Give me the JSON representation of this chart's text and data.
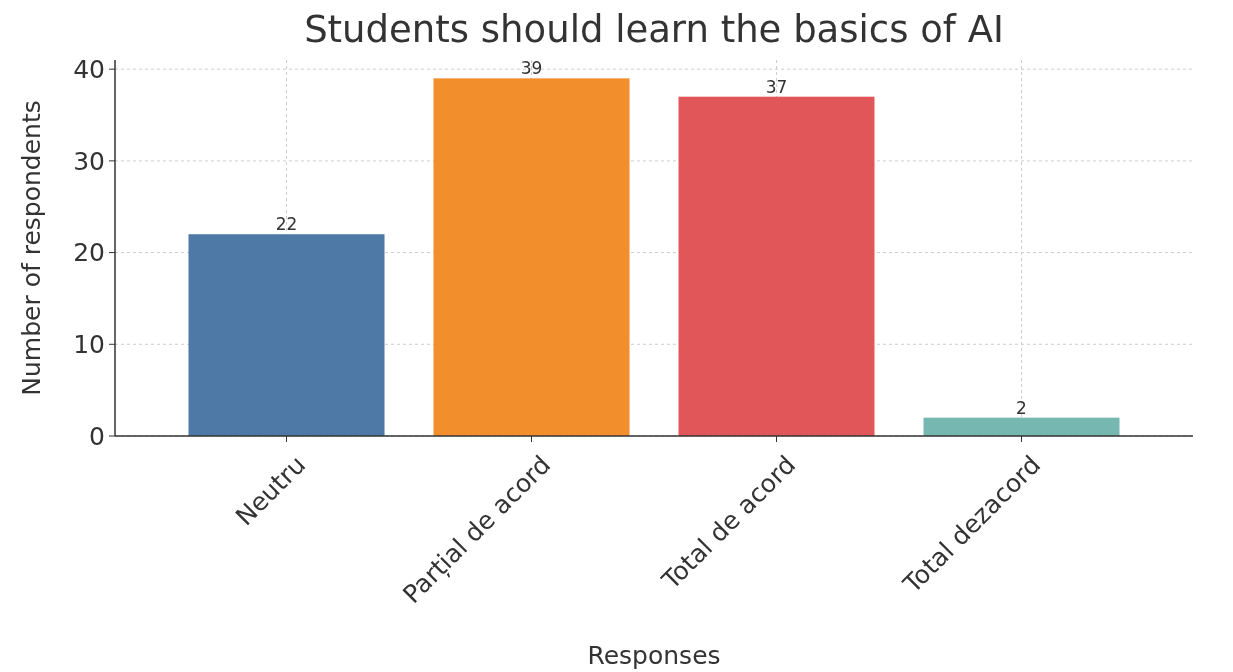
{
  "chart_data": {
    "type": "bar",
    "title": "Students should learn the basics of AI",
    "xlabel": "Responses",
    "ylabel": "Number of respondents",
    "categories": [
      "Neutru",
      "Parțial de acord",
      "Total de acord",
      "Total dezacord"
    ],
    "values": [
      22,
      39,
      37,
      2
    ],
    "colors": [
      "#4e79a7",
      "#f28e2b",
      "#e15759",
      "#76b7b2"
    ],
    "ylim": [
      0,
      41
    ],
    "yticks": [
      0,
      10,
      20,
      30,
      40
    ],
    "grid": true,
    "data_labels": true
  }
}
